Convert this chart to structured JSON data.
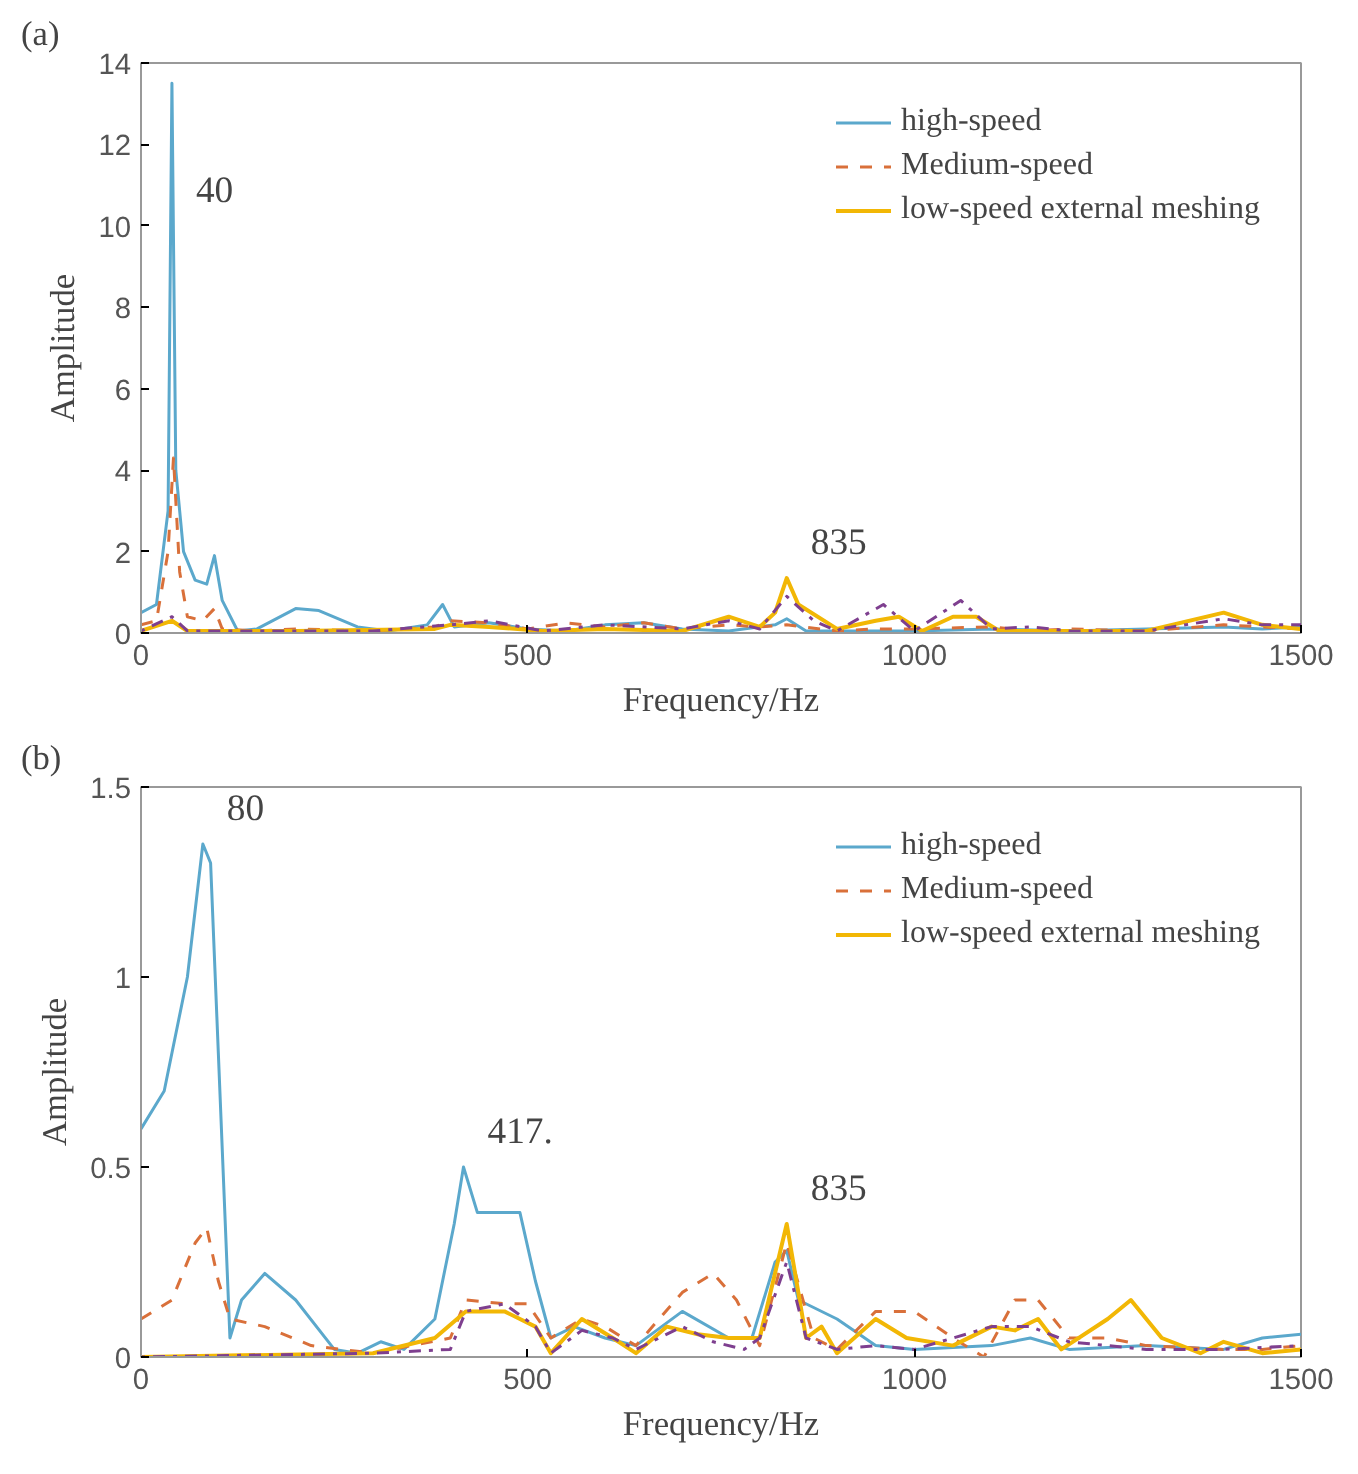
{
  "chart_data": [
    {
      "type": "line",
      "title": "(a)",
      "xlabel": "Frequency/Hz",
      "ylabel": "Amplitude",
      "xlim": [
        0,
        1500
      ],
      "xticks": [
        0,
        500,
        1000,
        1500
      ],
      "ylim": [
        0,
        14
      ],
      "yticks": [
        0,
        2,
        4,
        6,
        8,
        10,
        12,
        14
      ],
      "grid": false,
      "legend": "top right",
      "annotations": [
        {
          "text": "40",
          "x": 40,
          "y": 10
        },
        {
          "text": "835",
          "x": 835,
          "y": 1.35
        }
      ],
      "series": [
        {
          "name": "high-speed",
          "color": "#5ba8cc",
          "line_style": "solid",
          "x": [
            0,
            20,
            35,
            40,
            45,
            55,
            70,
            85,
            95,
            105,
            125,
            150,
            200,
            230,
            280,
            320,
            370,
            390,
            405,
            450,
            500,
            550,
            600,
            650,
            700,
            760,
            820,
            835,
            860,
            900,
            1000,
            1100,
            1200,
            1300,
            1400,
            1450,
            1500
          ],
          "values": [
            0.5,
            0.7,
            3,
            13.5,
            4,
            2,
            1.3,
            1.2,
            1.9,
            0.8,
            0.05,
            0.1,
            0.6,
            0.55,
            0.15,
            0.05,
            0.2,
            0.7,
            0.15,
            0.25,
            0.1,
            0.05,
            0.2,
            0.25,
            0.1,
            0.05,
            0.2,
            0.35,
            0.05,
            0.05,
            0.05,
            0.1,
            0.05,
            0.1,
            0.15,
            0.1,
            0.15
          ]
        },
        {
          "name": "Medium-speed",
          "color": "#d9703a",
          "line_style": "dashed",
          "x": [
            0,
            20,
            35,
            42,
            50,
            60,
            80,
            95,
            105,
            150,
            200,
            300,
            380,
            400,
            450,
            500,
            550,
            600,
            650,
            700,
            760,
            800,
            835,
            900,
            950,
            1000,
            1100,
            1150,
            1200,
            1300,
            1400,
            1500
          ],
          "values": [
            0.2,
            0.3,
            2,
            4.3,
            1.5,
            0.4,
            0.3,
            0.6,
            0.1,
            0.05,
            0.1,
            0.05,
            0.15,
            0.3,
            0.25,
            0.1,
            0.25,
            0.15,
            0.25,
            0.1,
            0.2,
            0.15,
            0.2,
            0.05,
            0.1,
            0.1,
            0.15,
            0.05,
            0.1,
            0.05,
            0.2,
            0.1
          ]
        },
        {
          "name": "low-speed external meshing",
          "color": "#f2b705",
          "line_style": "solid",
          "x": [
            0,
            40,
            60,
            200,
            380,
            400,
            450,
            520,
            600,
            700,
            760,
            800,
            820,
            835,
            850,
            900,
            950,
            980,
            1010,
            1050,
            1080,
            1110,
            1200,
            1300,
            1400,
            1450,
            1500
          ],
          "values": [
            0.05,
            0.3,
            0.05,
            0.05,
            0.1,
            0.2,
            0.15,
            0.05,
            0.1,
            0.05,
            0.4,
            0.15,
            0.5,
            1.35,
            0.7,
            0.1,
            0.3,
            0.4,
            0.05,
            0.4,
            0.4,
            0.05,
            0.05,
            0.05,
            0.5,
            0.2,
            0.1
          ]
        },
        {
          "color": "#7e3f8f",
          "line_style": "dotted",
          "x": [
            0,
            40,
            60,
            300,
            400,
            450,
            520,
            600,
            700,
            760,
            800,
            835,
            870,
            900,
            960,
            1000,
            1060,
            1100,
            1150,
            1200,
            1300,
            1400,
            1450,
            1500
          ],
          "values": [
            0.05,
            0.4,
            0.05,
            0.05,
            0.2,
            0.3,
            0.05,
            0.2,
            0.1,
            0.3,
            0.1,
            0.9,
            0.3,
            0.05,
            0.7,
            0.05,
            0.8,
            0.1,
            0.15,
            0.05,
            0.05,
            0.35,
            0.2,
            0.2
          ]
        }
      ]
    },
    {
      "type": "line",
      "title": "(b)",
      "xlabel": "Frequency/Hz",
      "ylabel": "Amplitude",
      "xlim": [
        0,
        1500
      ],
      "xticks": [
        0,
        500,
        1000,
        1500
      ],
      "ylim": [
        0,
        1.5
      ],
      "yticks": [
        0,
        0.5,
        1,
        1.5
      ],
      "grid": false,
      "legend": "top right",
      "annotations": [
        {
          "text": "80",
          "x": 80,
          "y": 1.35
        },
        {
          "text": "417.",
          "x": 417,
          "y": 0.5
        },
        {
          "text": "835",
          "x": 835,
          "y": 0.35
        }
      ],
      "series": [
        {
          "name": "high-speed",
          "color": "#5ba8cc",
          "line_style": "solid",
          "x": [
            0,
            30,
            60,
            80,
            90,
            100,
            115,
            130,
            160,
            200,
            250,
            280,
            310,
            340,
            380,
            405,
            417,
            435,
            470,
            490,
            510,
            530,
            560,
            600,
            640,
            700,
            760,
            790,
            820,
            835,
            850,
            900,
            950,
            1000,
            1100,
            1150,
            1200,
            1300,
            1400,
            1450,
            1500
          ],
          "values": [
            0.6,
            0.7,
            1.0,
            1.35,
            1.3,
            0.8,
            0.05,
            0.15,
            0.22,
            0.15,
            0.02,
            0.01,
            0.04,
            0.02,
            0.1,
            0.35,
            0.5,
            0.38,
            0.38,
            0.38,
            0.2,
            0.05,
            0.08,
            0.05,
            0.03,
            0.12,
            0.05,
            0.05,
            0.25,
            0.28,
            0.15,
            0.1,
            0.03,
            0.02,
            0.03,
            0.05,
            0.02,
            0.03,
            0.02,
            0.05,
            0.06
          ]
        },
        {
          "name": "Medium-speed",
          "color": "#d9703a",
          "line_style": "dashed",
          "x": [
            0,
            40,
            70,
            85,
            100,
            115,
            160,
            220,
            300,
            400,
            420,
            470,
            500,
            530,
            570,
            600,
            640,
            700,
            740,
            770,
            800,
            835,
            870,
            900,
            950,
            1000,
            1050,
            1090,
            1130,
            1160,
            1200,
            1250,
            1300,
            1400,
            1450,
            1500
          ],
          "values": [
            0.1,
            0.15,
            0.3,
            0.34,
            0.2,
            0.1,
            0.08,
            0.03,
            0.01,
            0.05,
            0.15,
            0.14,
            0.14,
            0.05,
            0.1,
            0.08,
            0.03,
            0.17,
            0.22,
            0.15,
            0.03,
            0.3,
            0.05,
            0.02,
            0.12,
            0.12,
            0.05,
            0.0,
            0.15,
            0.15,
            0.05,
            0.05,
            0.03,
            0.02,
            0.02,
            0.03
          ]
        },
        {
          "name": "low-speed external meshing",
          "color": "#f2b705",
          "line_style": "solid",
          "x": [
            0,
            300,
            380,
            420,
            470,
            510,
            530,
            570,
            610,
            640,
            680,
            720,
            760,
            800,
            835,
            860,
            880,
            900,
            950,
            990,
            1050,
            1100,
            1130,
            1160,
            1190,
            1250,
            1280,
            1320,
            1370,
            1400,
            1450,
            1500
          ],
          "values": [
            0.0,
            0.01,
            0.05,
            0.12,
            0.12,
            0.08,
            0.01,
            0.1,
            0.05,
            0.01,
            0.08,
            0.06,
            0.05,
            0.05,
            0.35,
            0.05,
            0.08,
            0.01,
            0.1,
            0.05,
            0.03,
            0.08,
            0.07,
            0.1,
            0.02,
            0.1,
            0.15,
            0.05,
            0.01,
            0.04,
            0.01,
            0.02
          ]
        },
        {
          "color": "#7e3f8f",
          "line_style": "dotted",
          "x": [
            0,
            300,
            400,
            420,
            470,
            510,
            530,
            570,
            610,
            640,
            700,
            740,
            780,
            800,
            835,
            860,
            900,
            950,
            1000,
            1100,
            1150,
            1200,
            1300,
            1400,
            1500
          ],
          "values": [
            0.0,
            0.01,
            0.02,
            0.12,
            0.14,
            0.08,
            0.01,
            0.07,
            0.05,
            0.02,
            0.08,
            0.04,
            0.02,
            0.05,
            0.25,
            0.05,
            0.02,
            0.03,
            0.02,
            0.08,
            0.08,
            0.04,
            0.02,
            0.02,
            0.03
          ]
        }
      ]
    }
  ]
}
